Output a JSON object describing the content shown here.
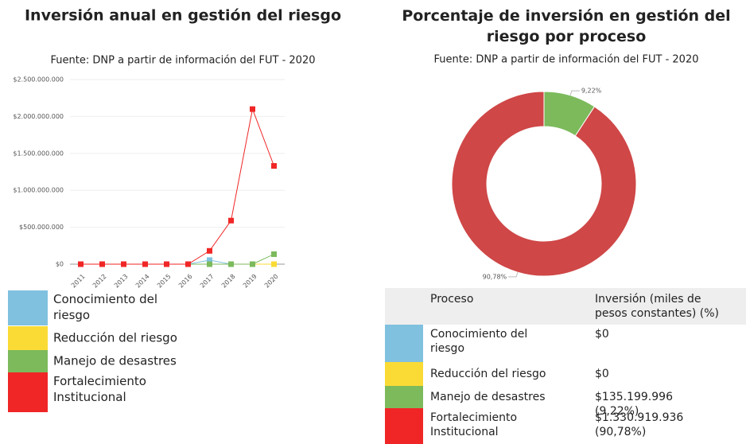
{
  "chart_data": [
    {
      "type": "line",
      "title": "Inversión anual en gestión del riesgo",
      "subtitle": "Fuente: DNP a partir de información del FUT - 2020",
      "categories": [
        "2011",
        "2012",
        "2013",
        "2014",
        "2015",
        "2016",
        "2017",
        "2018",
        "2019",
        "2020"
      ],
      "series": [
        {
          "name": "Conocimiento del riesgo",
          "color": "#80c1e0",
          "values": [
            0,
            0,
            0,
            0,
            0,
            0,
            55000000,
            0,
            0,
            0
          ]
        },
        {
          "name": "Reducción del riesgo",
          "color": "#fadb35",
          "values": [
            0,
            0,
            0,
            0,
            0,
            0,
            0,
            0,
            0,
            0
          ]
        },
        {
          "name": "Manejo de desastres",
          "color": "#7cba5c",
          "values": [
            0,
            0,
            0,
            0,
            0,
            0,
            0,
            0,
            0,
            135199996
          ]
        },
        {
          "name": "Fortalecimiento Institucional",
          "color": "#f02626",
          "values": [
            0,
            0,
            0,
            0,
            0,
            0,
            180000000,
            590000000,
            2100000000,
            1330919936
          ]
        }
      ],
      "ylim": [
        0,
        2500000000
      ],
      "yticks": [
        {
          "value": 0,
          "label": "$0"
        },
        {
          "value": 500000000,
          "label": "$500.000.000"
        },
        {
          "value": 1000000000,
          "label": "$1.000.000.000"
        },
        {
          "value": 1500000000,
          "label": "$1.500.000.000"
        },
        {
          "value": 2000000000,
          "label": "$2.000.000.000"
        },
        {
          "value": 2500000000,
          "label": "$2.500.000.000"
        }
      ]
    },
    {
      "type": "pie",
      "title": "Porcentaje de inversión en gestión del riesgo por proceso",
      "subtitle": "Fuente: DNP a partir de información del FUT - 2020",
      "values": [
        9.22,
        90.78
      ],
      "value_labels": [
        "9,22%",
        "90,78%"
      ],
      "colors": [
        "#7cba5c",
        "#cf4747"
      ]
    }
  ],
  "table": {
    "header": [
      "Proceso",
      "Inversión (miles de pesos constantes) (%)"
    ],
    "rows": [
      [
        "Conocimiento del riesgo",
        "$0"
      ],
      [
        "Reducción del riesgo",
        "$0"
      ],
      [
        "Manejo de desastres",
        "$135.199.996 (9,22%)"
      ],
      [
        "Fortalecimiento Institucional",
        "$1.330.919.936 (90,78%)"
      ]
    ]
  }
}
